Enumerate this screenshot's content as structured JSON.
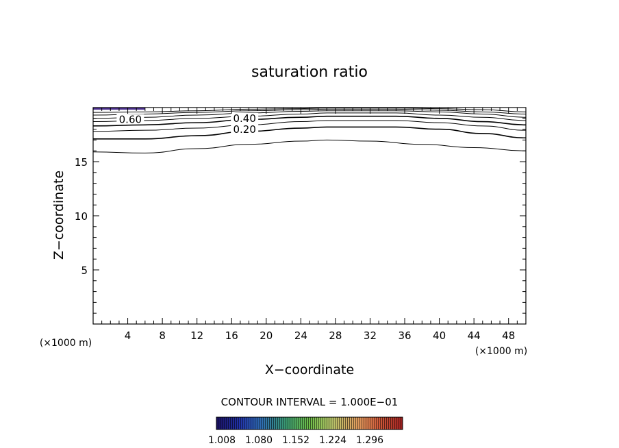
{
  "chart_data": {
    "type": "contour",
    "title": "saturation ratio",
    "xlabel": "X−coordinate",
    "ylabel": "Z−coordinate",
    "x_unit_label": "(×1000 m)",
    "z_unit_label": "(×1000 m)",
    "xlim": [
      0,
      50
    ],
    "ylim": [
      0,
      20
    ],
    "x_ticks": [
      "4",
      "8",
      "12",
      "16",
      "20",
      "24",
      "28",
      "32",
      "36",
      "40",
      "44",
      "48"
    ],
    "y_ticks": [
      "5",
      "10",
      "15"
    ],
    "contour_interval_text": "CONTOUR INTERVAL = 1.000E−01",
    "contour_labels": [
      {
        "text": "0.60",
        "x": 4.3,
        "z": 18.7
      },
      {
        "text": "0.40",
        "x": 17.5,
        "z": 18.8
      },
      {
        "text": "0.20",
        "x": 17.5,
        "z": 17.8
      }
    ],
    "contours": [
      {
        "level": 0.1,
        "points": [
          [
            0,
            15.9
          ],
          [
            6,
            15.8
          ],
          [
            12,
            16.2
          ],
          [
            18,
            16.6
          ],
          [
            24,
            16.9
          ],
          [
            27,
            17.0
          ],
          [
            32,
            16.9
          ],
          [
            38,
            16.6
          ],
          [
            44,
            16.3
          ],
          [
            50,
            16.0
          ]
        ]
      },
      {
        "level": 0.2,
        "points": [
          [
            0,
            17.1
          ],
          [
            6,
            17.1
          ],
          [
            12,
            17.4
          ],
          [
            18,
            17.8
          ],
          [
            24,
            18.1
          ],
          [
            27,
            18.2
          ],
          [
            35,
            18.2
          ],
          [
            40,
            18.0
          ],
          [
            45,
            17.6
          ],
          [
            50,
            17.2
          ]
        ]
      },
      {
        "level": 0.3,
        "points": [
          [
            0,
            17.8
          ],
          [
            6,
            17.9
          ],
          [
            12,
            18.1
          ],
          [
            18,
            18.4
          ],
          [
            24,
            18.7
          ],
          [
            27,
            18.8
          ],
          [
            35,
            18.8
          ],
          [
            40,
            18.6
          ],
          [
            45,
            18.3
          ],
          [
            50,
            17.9
          ]
        ]
      },
      {
        "level": 0.4,
        "points": [
          [
            0,
            18.3
          ],
          [
            6,
            18.4
          ],
          [
            12,
            18.6
          ],
          [
            18,
            18.9
          ],
          [
            24,
            19.1
          ],
          [
            27,
            19.2
          ],
          [
            35,
            19.2
          ],
          [
            40,
            19.0
          ],
          [
            45,
            18.7
          ],
          [
            50,
            18.4
          ]
        ]
      },
      {
        "level": 0.5,
        "points": [
          [
            0,
            18.7
          ],
          [
            6,
            18.8
          ],
          [
            12,
            19.0
          ],
          [
            18,
            19.2
          ],
          [
            24,
            19.4
          ],
          [
            27,
            19.5
          ],
          [
            35,
            19.5
          ],
          [
            40,
            19.3
          ],
          [
            45,
            19.1
          ],
          [
            50,
            18.8
          ]
        ]
      },
      {
        "level": 0.6,
        "points": [
          [
            0,
            19.0
          ],
          [
            6,
            19.1
          ],
          [
            12,
            19.3
          ],
          [
            18,
            19.5
          ],
          [
            24,
            19.65
          ],
          [
            27,
            19.7
          ],
          [
            35,
            19.7
          ],
          [
            40,
            19.6
          ],
          [
            45,
            19.4
          ],
          [
            50,
            19.1
          ]
        ]
      },
      {
        "level": 0.7,
        "points": [
          [
            0,
            19.3
          ],
          [
            6,
            19.4
          ],
          [
            12,
            19.55
          ],
          [
            18,
            19.7
          ],
          [
            24,
            19.8
          ],
          [
            27,
            19.85
          ],
          [
            35,
            19.85
          ],
          [
            40,
            19.75
          ],
          [
            45,
            19.6
          ],
          [
            50,
            19.4
          ]
        ]
      },
      {
        "level": 0.8,
        "points": [
          [
            0,
            19.55
          ],
          [
            6,
            19.6
          ],
          [
            12,
            19.7
          ],
          [
            18,
            19.85
          ],
          [
            24,
            19.9
          ],
          [
            27,
            19.95
          ],
          [
            35,
            19.95
          ],
          [
            40,
            19.9
          ],
          [
            45,
            19.8
          ],
          [
            50,
            19.6
          ]
        ]
      }
    ],
    "highlight_band": {
      "color": "#4a2d8c",
      "x_range": [
        0,
        6
      ],
      "z_range": [
        19.8,
        20
      ]
    },
    "colorbar": {
      "labels": [
        "1.008",
        "1.080",
        "1.152",
        "1.224",
        "1.296"
      ],
      "gradient": [
        "#1a1060",
        "#2233aa",
        "#2f70b0",
        "#3a9a70",
        "#6fbf4a",
        "#b9c46a",
        "#e0a060",
        "#d25a3a",
        "#a02020"
      ]
    }
  }
}
